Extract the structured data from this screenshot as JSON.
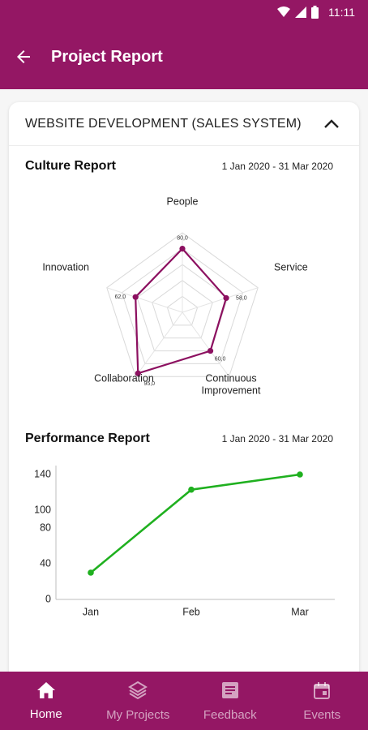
{
  "status_bar": {
    "time": "11:11"
  },
  "app_bar": {
    "title": "Project Report"
  },
  "project": {
    "name": "WEBSITE DEVELOPMENT (SALES SYSTEM)"
  },
  "culture_report": {
    "title": "Culture Report",
    "date_range": "1 Jan 2020 - 31 Mar 2020",
    "chart_data": {
      "type": "radar",
      "axes": [
        "People",
        "Service",
        "Continuous Improvement",
        "Collaboration",
        "Innovation"
      ],
      "axis_label_lines": [
        [
          "People"
        ],
        [
          "Service"
        ],
        [
          "Continuous",
          "Improvement"
        ],
        [
          "Collaboration"
        ],
        [
          "Innovation"
        ]
      ],
      "values": [
        80.0,
        58.0,
        60.0,
        95.0,
        62.0
      ],
      "value_labels": [
        "80,0",
        "58,0",
        "60,0",
        "95,0",
        "62,0"
      ],
      "range": [
        0,
        100
      ],
      "grid_rings": 5,
      "color": "#8c1060"
    }
  },
  "performance_report": {
    "title": "Performance Report",
    "date_range": "1 Jan 2020 - 31 Mar 2020",
    "chart_data": {
      "type": "line",
      "categories": [
        "Jan",
        "Feb",
        "Mar"
      ],
      "values": [
        30,
        123,
        140
      ],
      "ylim": [
        0,
        150
      ],
      "yticks": [
        "0",
        "40",
        "80",
        "100",
        "140"
      ],
      "ytick_values": [
        0,
        40,
        80,
        100,
        140
      ],
      "color": "#1fb01f"
    }
  },
  "bottom_nav": {
    "items": [
      {
        "label": "Home",
        "icon": "home-icon",
        "active": true
      },
      {
        "label": "My Projects",
        "icon": "layers-icon",
        "active": false
      },
      {
        "label": "Feedback",
        "icon": "feedback-icon",
        "active": false
      },
      {
        "label": "Events",
        "icon": "calendar-icon",
        "active": false
      }
    ]
  },
  "colors": {
    "primary": "#941764",
    "line": "#1fb01f"
  }
}
